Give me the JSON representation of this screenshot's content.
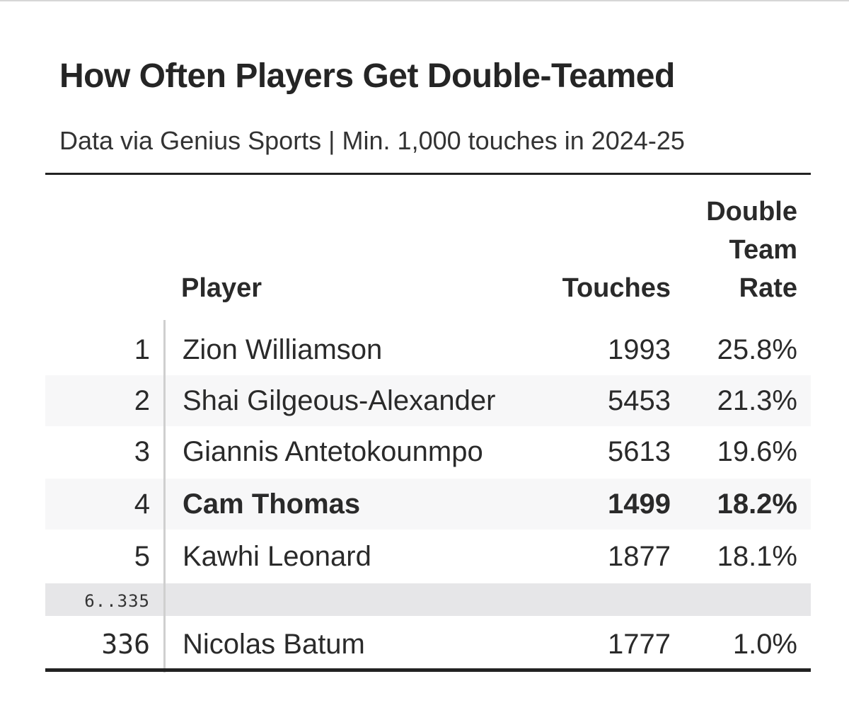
{
  "table": {
    "title": "How Often Players Get Double-Teamed",
    "subtitle": "Data via Genius Sports | Min. 1,000 touches in 2024-25",
    "columns": {
      "player": "Player",
      "touches": "Touches",
      "rate_line1": "Double",
      "rate_line2": "Team",
      "rate_line3": "Rate"
    },
    "rows": [
      {
        "rank": "1",
        "player": "Zion Williamson",
        "touches": "1993",
        "rate": "25.8%"
      },
      {
        "rank": "2",
        "player": "Shai Gilgeous-Alexander",
        "touches": "5453",
        "rate": "21.3%"
      },
      {
        "rank": "3",
        "player": "Giannis Antetokounmpo",
        "touches": "5613",
        "rate": "19.6%"
      },
      {
        "rank": "4",
        "player": "Cam Thomas",
        "touches": "1499",
        "rate": "18.2%"
      },
      {
        "rank": "5",
        "player": "Kawhi Leonard",
        "touches": "1877",
        "rate": "18.1%"
      }
    ],
    "gap_label": "6..335",
    "last_row": {
      "rank": "336",
      "player": "Nicolas Batum",
      "touches": "1777",
      "rate": "1.0%"
    },
    "highlight_color": "#222222"
  },
  "chart_data": {
    "type": "table",
    "title": "How Often Players Get Double-Teamed",
    "subtitle": "Data via Genius Sports | Min. 1,000 touches in 2024-25",
    "columns": [
      "",
      "Player",
      "Touches",
      "Double Team Rate"
    ],
    "rows": [
      [
        1,
        "Zion Williamson",
        1993,
        "25.8%"
      ],
      [
        2,
        "Shai Gilgeous-Alexander",
        5453,
        "21.3%"
      ],
      [
        3,
        "Giannis Antetokounmpo",
        5613,
        "19.6%"
      ],
      [
        4,
        "Cam Thomas",
        1499,
        "18.2%"
      ],
      [
        5,
        "Kawhi Leonard",
        1877,
        "18.1%"
      ],
      [
        "6..335",
        "",
        "",
        ""
      ],
      [
        336,
        "Nicolas Batum",
        1777,
        "1.0%"
      ]
    ],
    "highlighted_row": "Cam Thomas"
  }
}
